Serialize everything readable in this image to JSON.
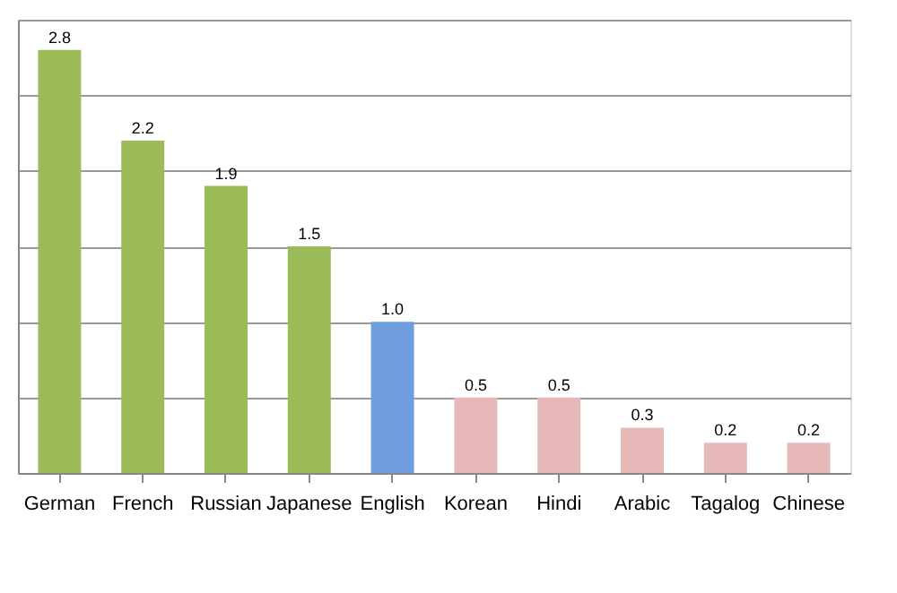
{
  "chart_data": {
    "type": "bar",
    "categories": [
      "German",
      "French",
      "Russian",
      "Japanese",
      "English",
      "Korean",
      "Hindi",
      "Arabic",
      "Tagalog",
      "Chinese"
    ],
    "values": [
      2.8,
      2.2,
      1.9,
      1.5,
      1.0,
      0.5,
      0.5,
      0.3,
      0.2,
      0.2
    ],
    "colors": [
      "#9bbb59",
      "#9bbb59",
      "#9bbb59",
      "#9bbb59",
      "#6f9ee0",
      "#e6b9b8",
      "#e6b9b8",
      "#e6b9b8",
      "#e6b9b8",
      "#e6b9b8"
    ],
    "ylim": [
      0,
      3
    ],
    "yticks": [
      {
        "value": 0,
        "label": null
      },
      {
        "value": 0.5,
        "label": null
      },
      {
        "value": 1.0,
        "label": null
      },
      {
        "value": 1.5,
        "label": null
      },
      {
        "value": 2.0,
        "label": null
      },
      {
        "value": 2.5,
        "label": null
      },
      {
        "value": 3.0,
        "label": null
      }
    ],
    "value_labels": [
      "2.8",
      "2.2",
      "1.9",
      "1.5",
      "1.0",
      "0.5",
      "0.5",
      "0.3",
      "0.2",
      "0.2"
    ],
    "grid": "y",
    "tick_labels": "x"
  }
}
